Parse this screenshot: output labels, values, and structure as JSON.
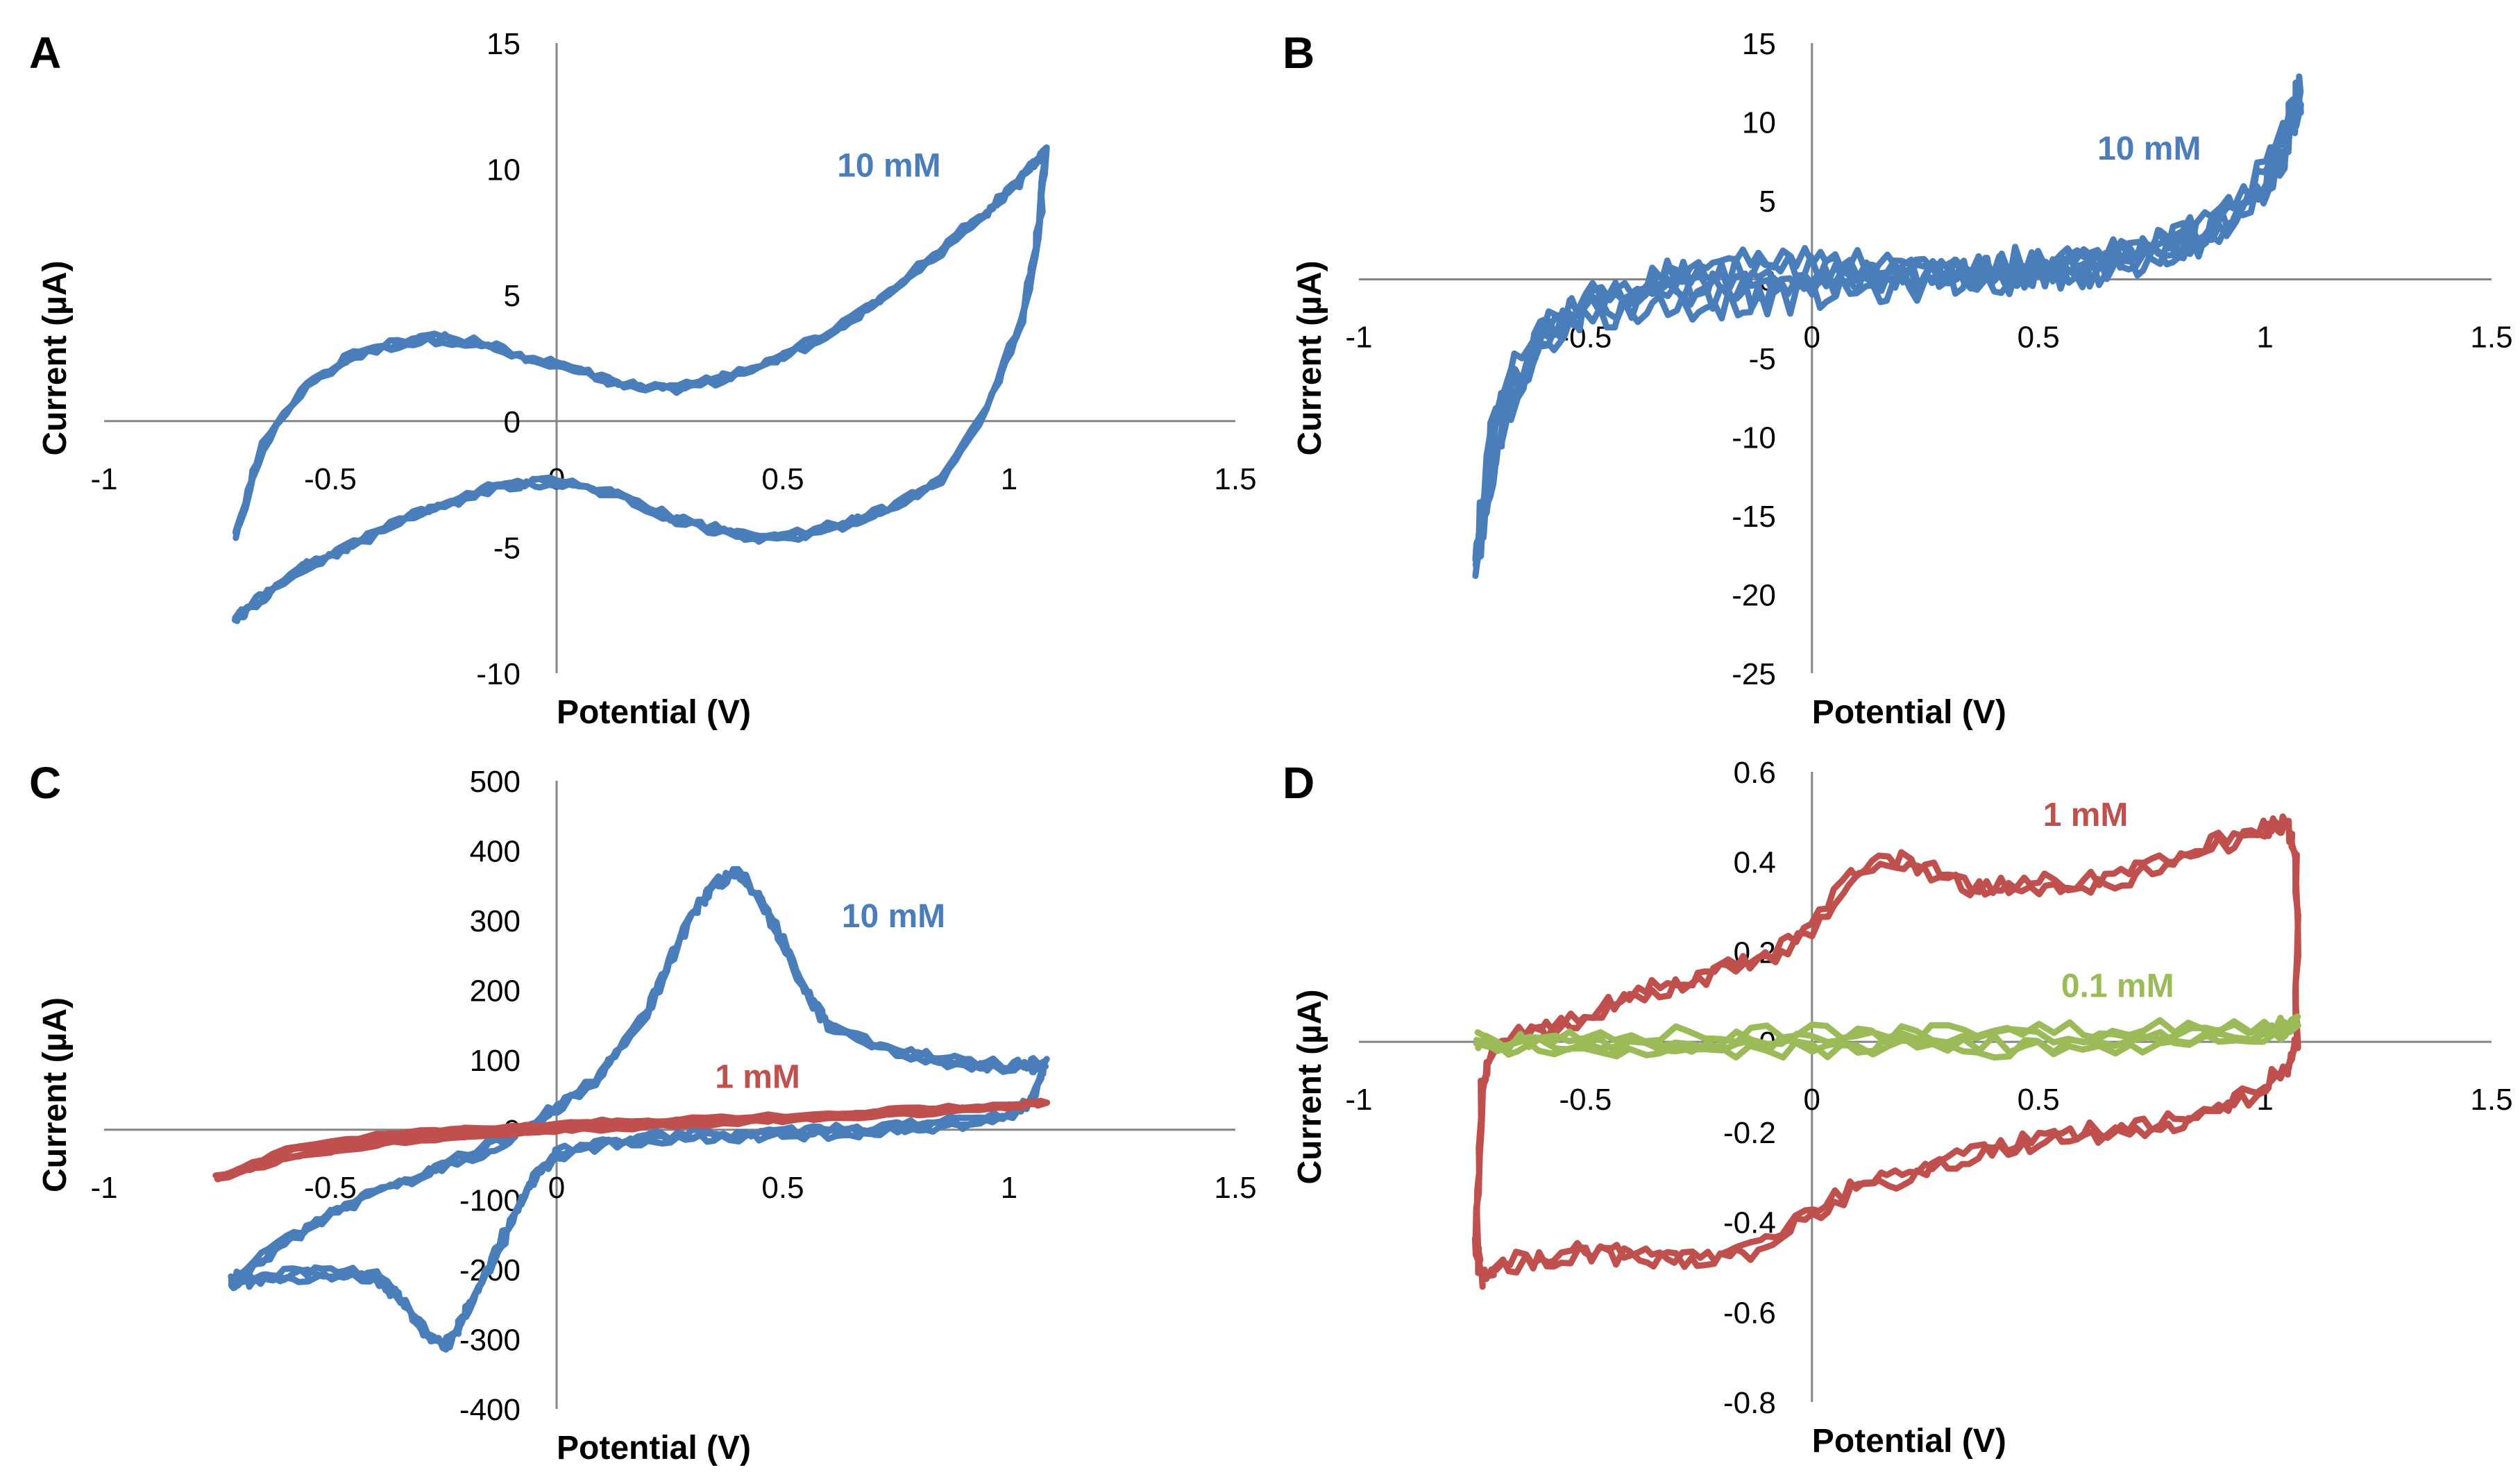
{
  "figure": {
    "colors": {
      "blue": "#4a7ebb",
      "red": "#c0504d",
      "green": "#9bbb59",
      "axis": "#868686",
      "text": "#000000"
    }
  },
  "chart_data": [
    {
      "panel": "A",
      "type": "line",
      "xlabel": "Potential (V)",
      "ylabel": "Current (µA)",
      "xlim": [
        -1,
        1.5
      ],
      "ylim": [
        -10,
        15
      ],
      "xticks": [
        -1,
        -0.5,
        0,
        0.5,
        1,
        1.5
      ],
      "xtick_labels": [
        "-1",
        "-0.5",
        "0",
        "0.5",
        "1",
        "1.5"
      ],
      "yticks": [
        -10,
        -5,
        0,
        5,
        10,
        15
      ],
      "ytick_labels": [
        "-10",
        "-5",
        "0",
        "5",
        "10",
        "15"
      ],
      "series": [
        {
          "name": "10 mM",
          "color": "#4a7ebb",
          "label_pos": [
            0.62,
            9.7
          ],
          "noise": 0.15,
          "cycles": 3,
          "x": [
            -0.71,
            -0.65,
            -0.55,
            -0.45,
            -0.35,
            -0.25,
            -0.15,
            -0.05,
            0.05,
            0.15,
            0.25,
            0.35,
            0.45,
            0.55,
            0.65,
            0.75,
            0.85,
            0.95,
            1.02,
            1.06,
            1.08,
            1.07,
            1.03,
            0.95,
            0.85,
            0.75,
            0.65,
            0.55,
            0.45,
            0.35,
            0.25,
            0.15,
            0.05,
            -0.05,
            -0.15,
            -0.25,
            -0.35,
            -0.45,
            -0.55,
            -0.63,
            -0.68,
            -0.71
          ],
          "y": [
            -4.5,
            -1.0,
            1.5,
            2.6,
            3.1,
            3.3,
            3.0,
            2.4,
            2.0,
            1.4,
            1.3,
            1.6,
            2.2,
            3.0,
            4.0,
            5.3,
            6.8,
            8.3,
            9.5,
            10.3,
            10.7,
            8.0,
            4.0,
            0.5,
            -2.3,
            -3.4,
            -4.0,
            -4.5,
            -4.6,
            -4.3,
            -3.8,
            -3.0,
            -2.5,
            -2.4,
            -2.7,
            -3.3,
            -4.0,
            -4.9,
            -5.7,
            -6.7,
            -7.4,
            -7.8
          ]
        }
      ]
    },
    {
      "panel": "B",
      "type": "line",
      "xlabel": "Potential (V)",
      "ylabel": "Current (µA)",
      "xlim": [
        -1,
        1.5
      ],
      "ylim": [
        -25,
        15
      ],
      "xticks": [
        -1,
        -0.5,
        0,
        0.5,
        1,
        1.5
      ],
      "xtick_labels": [
        "-1",
        "-0.5",
        "0",
        "0.5",
        "1",
        "1.5"
      ],
      "yticks": [
        -25,
        -20,
        -15,
        -10,
        -5,
        0,
        5,
        10,
        15
      ],
      "ytick_labels": [
        "-25",
        "-20",
        "-15",
        "-10",
        "-5",
        "0",
        "5",
        "10",
        "15"
      ],
      "series": [
        {
          "name": "10 mM",
          "color": "#4a7ebb",
          "label_pos": [
            0.63,
            7.6
          ],
          "noise": 1.0,
          "cycles": 3,
          "x": [
            -0.74,
            -0.72,
            -0.68,
            -0.6,
            -0.5,
            -0.4,
            -0.3,
            -0.2,
            -0.1,
            0,
            0.1,
            0.2,
            0.3,
            0.4,
            0.5,
            0.6,
            0.7,
            0.8,
            0.9,
            1.0,
            1.05,
            1.08,
            1.05,
            1.0,
            0.9,
            0.8,
            0.7,
            0.6,
            0.5,
            0.4,
            0.3,
            0.2,
            0.1,
            0,
            -0.1,
            -0.2,
            -0.3,
            -0.4,
            -0.5,
            -0.6,
            -0.68,
            -0.72,
            -0.74
          ],
          "y": [
            -18.0,
            -12.0,
            -7.0,
            -3.5,
            -2.0,
            -1.5,
            -1.2,
            -1.0,
            -0.8,
            -0.6,
            -0.3,
            0,
            0.3,
            0.5,
            0.8,
            1.0,
            1.4,
            2.0,
            3.5,
            6.5,
            9.5,
            12.0,
            9.0,
            6.0,
            3.5,
            2.0,
            1.2,
            0.8,
            0.6,
            0.4,
            0.3,
            0.3,
            0.4,
            0.5,
            0.5,
            0.3,
            0.0,
            -0.5,
            -1.5,
            -4.0,
            -9.0,
            -14.0,
            -18.0
          ]
        }
      ]
    },
    {
      "panel": "C",
      "type": "line",
      "xlabel": "Potential (V)",
      "ylabel": "Current (µA)",
      "xlim": [
        -1,
        1.5
      ],
      "ylim": [
        -400,
        500
      ],
      "xticks": [
        -1,
        -0.5,
        0,
        0.5,
        1,
        1.5
      ],
      "xtick_labels": [
        "-1",
        "-0.5",
        "0",
        "0.5",
        "1",
        "1.5"
      ],
      "yticks": [
        -400,
        -300,
        -200,
        -100,
        0,
        100,
        200,
        300,
        400,
        500
      ],
      "ytick_labels": [
        "-400",
        "-300",
        "-200",
        "-100",
        "0",
        "100",
        "200",
        "300",
        "400",
        "500"
      ],
      "series": [
        {
          "name": "10 mM",
          "color": "#4a7ebb",
          "label_pos": [
            0.63,
            290
          ],
          "noise": 7,
          "cycles": 3,
          "x": [
            -0.7,
            -0.6,
            -0.5,
            -0.4,
            -0.3,
            -0.2,
            -0.1,
            0,
            0.1,
            0.2,
            0.25,
            0.3,
            0.35,
            0.4,
            0.45,
            0.5,
            0.55,
            0.6,
            0.7,
            0.8,
            0.9,
            1.0,
            1.05,
            1.08,
            1.05,
            1.0,
            0.9,
            0.8,
            0.7,
            0.6,
            0.5,
            0.4,
            0.3,
            0.2,
            0.1,
            0.0,
            -0.05,
            -0.1,
            -0.15,
            -0.2,
            -0.23,
            -0.25,
            -0.3,
            -0.35,
            -0.4,
            -0.5,
            -0.6,
            -0.68,
            -0.72,
            -0.7
          ],
          "y": [
            -210,
            -160,
            -120,
            -90,
            -65,
            -40,
            -10,
            30,
            80,
            170,
            240,
            310,
            350,
            370,
            330,
            270,
            200,
            150,
            120,
            105,
            95,
            90,
            92,
            95,
            40,
            20,
            10,
            5,
            0,
            -3,
            -5,
            -8,
            -10,
            -12,
            -20,
            -35,
            -70,
            -130,
            -200,
            -260,
            -300,
            -310,
            -280,
            -240,
            -210,
            -205,
            -210,
            -215,
            -220,
            -210
          ]
        },
        {
          "name": "1 mM",
          "color": "#c0504d",
          "label_pos": [
            0.35,
            60
          ],
          "noise": 3,
          "cycles": 3,
          "x": [
            -0.75,
            -0.6,
            -0.4,
            -0.2,
            0,
            0.2,
            0.4,
            0.6,
            0.8,
            1.0,
            1.08,
            1.0,
            0.8,
            0.6,
            0.4,
            0.2,
            0,
            -0.2,
            -0.4,
            -0.6,
            -0.75
          ],
          "y": [
            -70,
            -30,
            -10,
            0,
            8,
            12,
            16,
            22,
            28,
            34,
            40,
            32,
            25,
            18,
            12,
            6,
            0,
            -8,
            -20,
            -40,
            -70
          ]
        }
      ]
    },
    {
      "panel": "D",
      "type": "line",
      "xlabel": "Potential (V)",
      "ylabel": "Current (µA)",
      "xlim": [
        -1,
        1.5
      ],
      "ylim": [
        -0.8,
        0.6
      ],
      "xticks": [
        -1,
        -0.5,
        0,
        0.5,
        1,
        1.5
      ],
      "xtick_labels": [
        "-1",
        "-0.5",
        "0",
        "0.5",
        "1",
        "1.5"
      ],
      "yticks": [
        -0.8,
        -0.6,
        -0.4,
        -0.2,
        0,
        0.2,
        0.4,
        0.6
      ],
      "ytick_labels": [
        "-0.8",
        "-0.6",
        "-0.4",
        "-0.2",
        "0",
        "0.2",
        "0.4",
        "0.6"
      ],
      "series": [
        {
          "name": "1 mM",
          "color": "#c0504d",
          "label_pos": [
            0.51,
            0.48
          ],
          "noise": 0.02,
          "cycles": 2,
          "x": [
            -0.74,
            -0.73,
            -0.7,
            -0.6,
            -0.5,
            -0.4,
            -0.3,
            -0.2,
            -0.1,
            0,
            0.1,
            0.2,
            0.3,
            0.4,
            0.5,
            0.6,
            0.7,
            0.8,
            0.9,
            1.0,
            1.05,
            1.07,
            1.07,
            1.05,
            1.0,
            0.9,
            0.8,
            0.7,
            0.6,
            0.5,
            0.4,
            0.3,
            0.2,
            0.1,
            0,
            -0.1,
            -0.2,
            -0.3,
            -0.4,
            -0.5,
            -0.6,
            -0.7,
            -0.73,
            -0.74
          ],
          "y": [
            -0.45,
            -0.1,
            0.0,
            0.02,
            0.06,
            0.1,
            0.13,
            0.16,
            0.18,
            0.25,
            0.38,
            0.4,
            0.36,
            0.34,
            0.35,
            0.35,
            0.37,
            0.4,
            0.44,
            0.47,
            0.48,
            0.4,
            0.0,
            -0.05,
            -0.1,
            -0.15,
            -0.18,
            -0.2,
            -0.2,
            -0.22,
            -0.24,
            -0.27,
            -0.3,
            -0.32,
            -0.38,
            -0.45,
            -0.48,
            -0.48,
            -0.47,
            -0.47,
            -0.48,
            -0.5,
            -0.52,
            -0.45
          ]
        },
        {
          "name": "0.1 mM",
          "color": "#9bbb59",
          "label_pos": [
            0.55,
            0.1
          ],
          "noise": 0.02,
          "cycles": 2,
          "x": [
            -0.74,
            -0.6,
            -0.4,
            -0.2,
            0,
            0.2,
            0.4,
            0.6,
            0.8,
            1.0,
            1.07,
            1.0,
            0.8,
            0.6,
            0.4,
            0.2,
            0,
            -0.2,
            -0.4,
            -0.6,
            -0.74
          ],
          "y": [
            0.0,
            0.01,
            0.01,
            0.01,
            0.02,
            0.02,
            0.02,
            0.02,
            0.03,
            0.03,
            0.04,
            0.02,
            0.0,
            -0.01,
            -0.01,
            -0.01,
            -0.01,
            -0.02,
            -0.01,
            -0.01,
            0.0
          ]
        }
      ]
    }
  ]
}
